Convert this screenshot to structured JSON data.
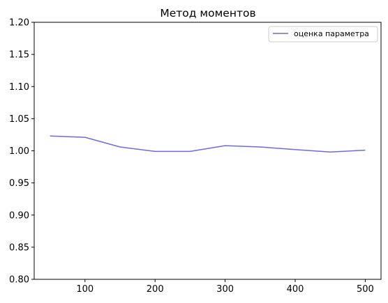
{
  "chart_data": {
    "type": "line",
    "title": "Метод моментов",
    "xlabel": "",
    "ylabel": "",
    "xlim": [
      27.5,
      522.5
    ],
    "ylim": [
      0.8,
      1.2
    ],
    "x_ticks": [
      100,
      200,
      300,
      400,
      500
    ],
    "x_tick_labels": [
      "100",
      "200",
      "300",
      "400",
      "500"
    ],
    "y_ticks": [
      0.8,
      0.85,
      0.9,
      0.95,
      1.0,
      1.05,
      1.1,
      1.15,
      1.2
    ],
    "y_tick_labels": [
      "0.80",
      "0.85",
      "0.90",
      "0.95",
      "1.00",
      "1.05",
      "1.10",
      "1.15",
      "1.20"
    ],
    "grid": false,
    "legend_position": "top-right",
    "series": [
      {
        "name": "оценка параметра",
        "color": "#6b6be6",
        "x": [
          50,
          100,
          150,
          200,
          250,
          300,
          350,
          400,
          450,
          500
        ],
        "y": [
          1.023,
          1.021,
          1.006,
          0.999,
          0.999,
          1.008,
          1.006,
          1.002,
          0.998,
          1.001
        ]
      }
    ]
  }
}
